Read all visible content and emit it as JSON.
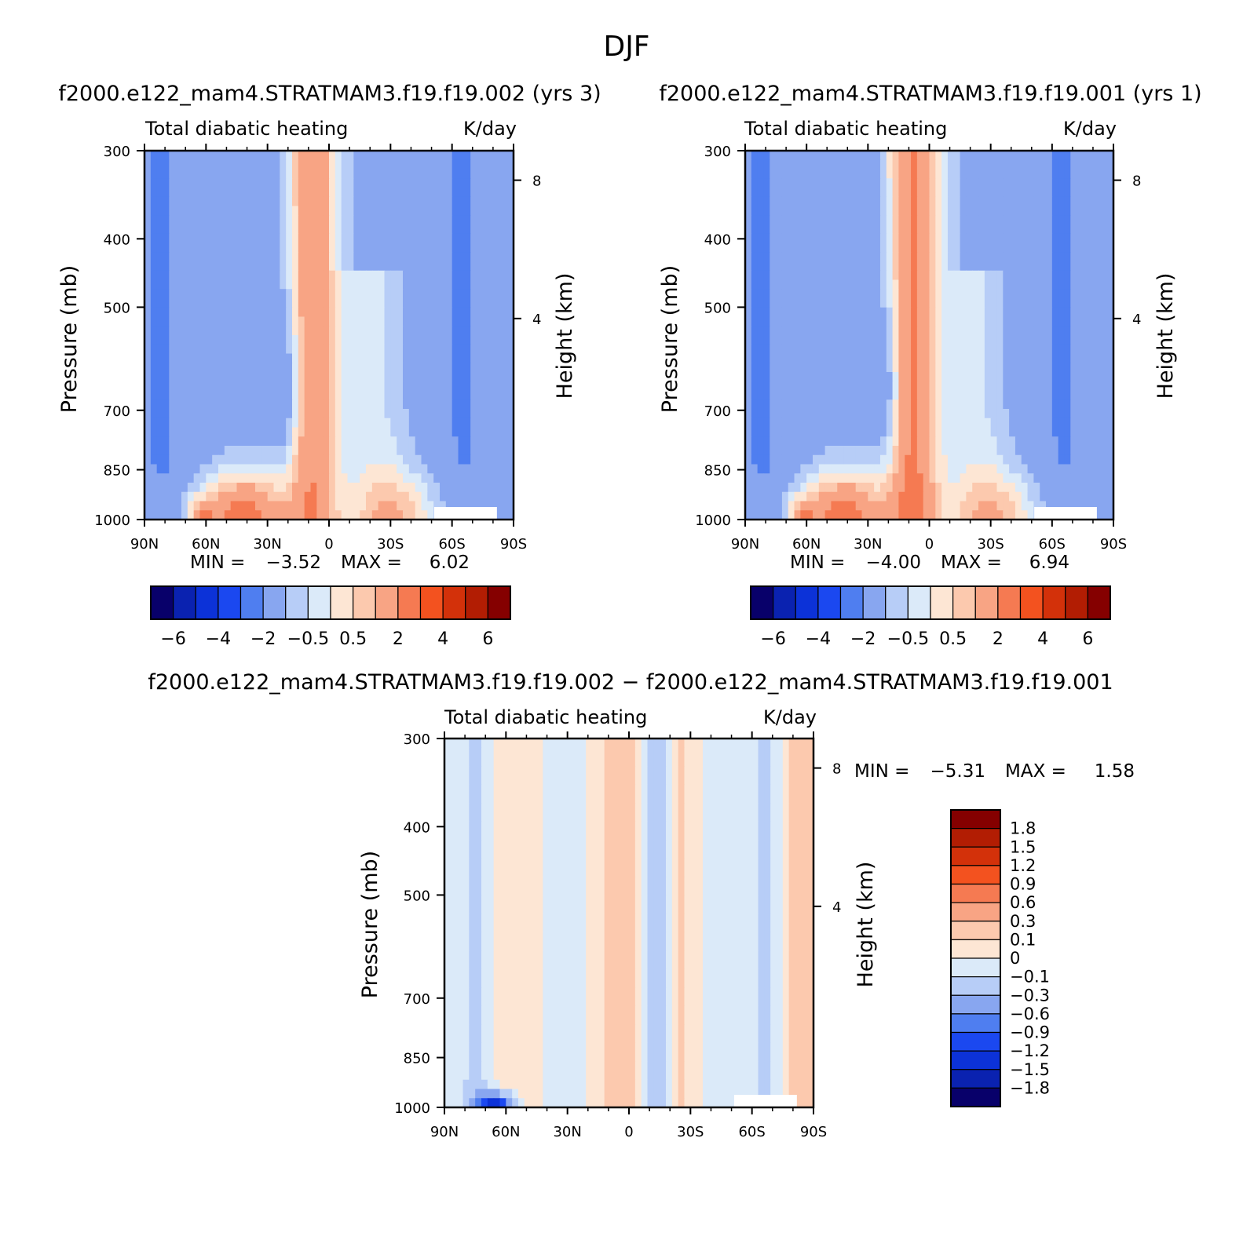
{
  "figure_title": "DJF",
  "colors": {
    "main_scale": [
      "#08006a",
      "#0a22b0",
      "#0c32d8",
      "#1b48f0",
      "#4f7ef0",
      "#88a6f0",
      "#b7cdf7",
      "#dbeaf9",
      "#fde6d4",
      "#fcc9ae",
      "#f8a484",
      "#f57a52",
      "#f3521f",
      "#d3310a",
      "#b21d03",
      "#850000"
    ],
    "diff_scale": [
      "#08006a",
      "#0a22b0",
      "#0c32d8",
      "#1b48f0",
      "#4f7ef0",
      "#88a6f0",
      "#b7cdf7",
      "#dbeaf9",
      "#fde6d4",
      "#fcc9ae",
      "#f8a484",
      "#f57a52",
      "#f3521f",
      "#d3310a",
      "#b21d03",
      "#850000"
    ]
  },
  "chart_data": [
    {
      "type": "heatmap",
      "title": "f2000.e122_mam4.STRATMAM3.f19.f19.002 (yrs 3)",
      "left_subtitle": "Total diabatic heating",
      "right_subtitle": "K/day",
      "ylabel": "Pressure (mb)",
      "y2label": "Height (km)",
      "xticks": [
        "90N",
        "60N",
        "30N",
        "0",
        "30S",
        "60S",
        "90S"
      ],
      "yticks": [
        "300",
        "400",
        "500",
        "700",
        "850",
        "1000"
      ],
      "y2ticks": [
        "8",
        "4"
      ],
      "min_label": "MIN =",
      "min_value": "−3.52",
      "max_label": "MAX =",
      "max_value": "6.02",
      "colorbar_labels": [
        "−6",
        "−4",
        "−2",
        "−0.5",
        "0.5",
        "2",
        "4",
        "6"
      ],
      "grid": false
    },
    {
      "type": "heatmap",
      "title": "f2000.e122_mam4.STRATMAM3.f19.f19.001 (yrs 1)",
      "left_subtitle": "Total diabatic heating",
      "right_subtitle": "K/day",
      "ylabel": "Pressure (mb)",
      "y2label": "Height (km)",
      "xticks": [
        "90N",
        "60N",
        "30N",
        "0",
        "30S",
        "60S",
        "90S"
      ],
      "yticks": [
        "300",
        "400",
        "500",
        "700",
        "850",
        "1000"
      ],
      "y2ticks": [
        "8",
        "4"
      ],
      "min_label": "MIN =",
      "min_value": "−4.00",
      "max_label": "MAX =",
      "max_value": "6.94",
      "colorbar_labels": [
        "−6",
        "−4",
        "−2",
        "−0.5",
        "0.5",
        "2",
        "4",
        "6"
      ],
      "grid": false
    },
    {
      "type": "heatmap",
      "title": "f2000.e122_mam4.STRATMAM3.f19.f19.002 − f2000.e122_mam4.STRATMAM3.f19.f19.001",
      "left_subtitle": "Total diabatic heating",
      "right_subtitle": "K/day",
      "ylabel": "Pressure (mb)",
      "y2label": "Height (km)",
      "xticks": [
        "90N",
        "60N",
        "30N",
        "0",
        "30S",
        "60S",
        "90S"
      ],
      "yticks": [
        "300",
        "400",
        "500",
        "700",
        "850",
        "1000"
      ],
      "y2ticks": [
        "8",
        "4"
      ],
      "min_label": "MIN =",
      "min_value": "−5.31",
      "max_label": "MAX =",
      "max_value": "1.58",
      "colorbar_labels": [
        "1.8",
        "1.5",
        "1.2",
        "0.9",
        "0.6",
        "0.3",
        "0.1",
        "0",
        "−0.1",
        "−0.3",
        "−0.6",
        "−0.9",
        "−1.2",
        "−1.5",
        "−1.8"
      ],
      "grid": false
    }
  ]
}
